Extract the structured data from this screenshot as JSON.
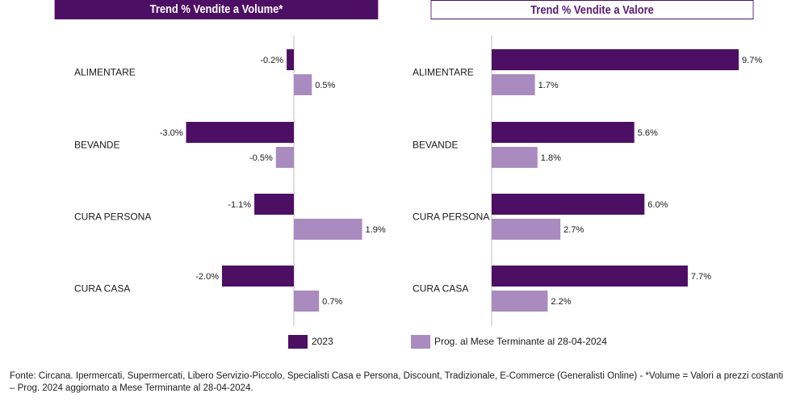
{
  "colors": {
    "series_2023": "#4d0f63",
    "series_prog": "#a98bbf",
    "header_bg": "#4d0f63",
    "axis": "#bdbdbd"
  },
  "header": {
    "left_title": "Trend % Vendite a Volume*",
    "right_title": "Trend % Vendite a Valore"
  },
  "legend": {
    "items": [
      {
        "label": "2023",
        "color": "#4d0f63"
      },
      {
        "label": "Prog. al Mese Terminante al 28-04-2024",
        "color": "#a98bbf"
      }
    ]
  },
  "chart_data": [
    {
      "type": "bar",
      "orientation": "horizontal",
      "title": "Trend % Vendite a Volume*",
      "categories": [
        "ALIMENTARE",
        "BEVANDE",
        "CURA PERSONA",
        "CURA CASA"
      ],
      "series": [
        {
          "name": "2023",
          "values": [
            -0.2,
            -3.0,
            -1.1,
            -2.0
          ],
          "labels": [
            "-0.2%",
            "-3.0%",
            "-1.1%",
            "-2.0%"
          ]
        },
        {
          "name": "Prog. al Mese Terminante al 28-04-2024",
          "values": [
            0.5,
            -0.5,
            1.9,
            0.7
          ],
          "labels": [
            "0.5%",
            "-0.5%",
            "1.9%",
            "0.7%"
          ]
        }
      ],
      "xlim": [
        -5.5,
        5.5
      ],
      "unit": "%"
    },
    {
      "type": "bar",
      "orientation": "horizontal",
      "title": "Trend % Vendite a Valore",
      "categories": [
        "ALIMENTARE",
        "BEVANDE",
        "CURA PERSONA",
        "CURA CASA"
      ],
      "series": [
        {
          "name": "2023",
          "values": [
            9.7,
            5.6,
            6.0,
            7.7
          ],
          "labels": [
            "9.7%",
            "5.6%",
            "6.0%",
            "7.7%"
          ]
        },
        {
          "name": "Prog. al Mese Terminante al 28-04-2024",
          "values": [
            1.7,
            1.8,
            2.7,
            2.2
          ],
          "labels": [
            "1.7%",
            "1.8%",
            "2.7%",
            "2.2%"
          ]
        }
      ],
      "xlim": [
        0,
        11.2
      ],
      "unit": "%"
    }
  ],
  "footnote": "Fonte: Circana. Ipermercati, Supermercati, Libero Servizio-Piccolo, Specialisti Casa e Persona, Discount, Tradizionale, E-Commerce (Generalisti Online) - *Volume = Valori a prezzi costanti – Prog. 2024 aggiornato a Mese Terminante al 28-04-2024."
}
